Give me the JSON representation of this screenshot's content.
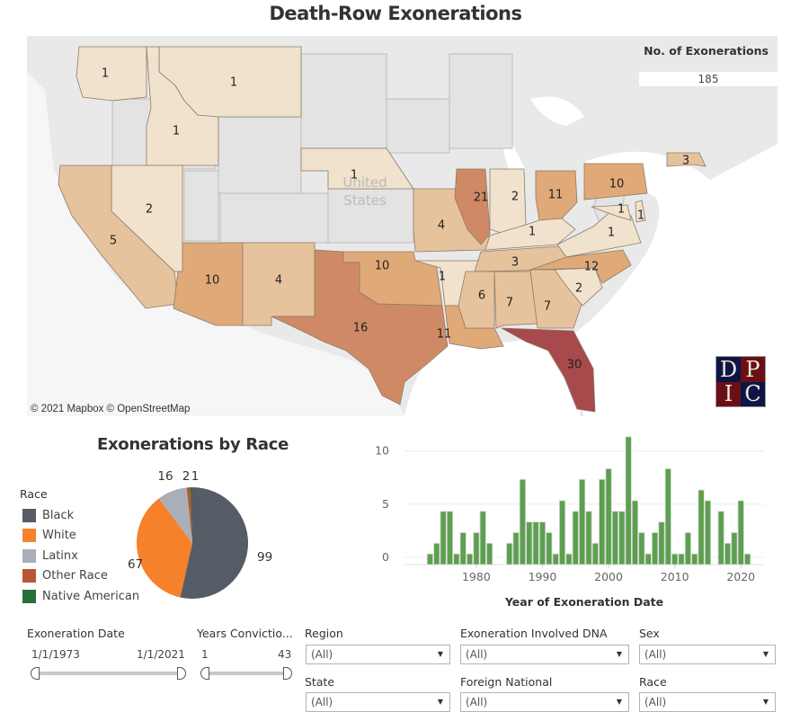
{
  "title": "Death-Row Exonerations",
  "map": {
    "kpi_label": "No. of Exonerations",
    "kpi_value": "185",
    "country_label_line1": "United",
    "country_label_line2": "States",
    "credit": "© 2021 Mapbox © OpenStreetMap",
    "logo_letters": [
      "D",
      "P",
      "I",
      "C"
    ],
    "color_scale": [
      "#f0e2cc",
      "#e7c39d",
      "#e0a978",
      "#cf8a65",
      "#a8494c"
    ],
    "states": [
      {
        "state": "WA",
        "value": 1
      },
      {
        "state": "MT",
        "value": 1
      },
      {
        "state": "ID",
        "value": 1
      },
      {
        "state": "NV",
        "value": 2
      },
      {
        "state": "CA",
        "value": 5
      },
      {
        "state": "AZ",
        "value": 10
      },
      {
        "state": "NM",
        "value": 4
      },
      {
        "state": "NE",
        "value": 1
      },
      {
        "state": "OK",
        "value": 10
      },
      {
        "state": "TX",
        "value": 16
      },
      {
        "state": "MO",
        "value": 4
      },
      {
        "state": "AR",
        "value": 1
      },
      {
        "state": "LA",
        "value": 11
      },
      {
        "state": "IL",
        "value": 21
      },
      {
        "state": "IN",
        "value": 2
      },
      {
        "state": "OH",
        "value": 11
      },
      {
        "state": "KY",
        "value": 1
      },
      {
        "state": "TN",
        "value": 3
      },
      {
        "state": "MS",
        "value": 6
      },
      {
        "state": "AL",
        "value": 7
      },
      {
        "state": "GA",
        "value": 7
      },
      {
        "state": "FL",
        "value": 30
      },
      {
        "state": "SC",
        "value": 2
      },
      {
        "state": "NC",
        "value": 12
      },
      {
        "state": "VA",
        "value": 1
      },
      {
        "state": "MD",
        "value": 1
      },
      {
        "state": "DE",
        "value": 1
      },
      {
        "state": "PA",
        "value": 10
      },
      {
        "state": "MA",
        "value": 3
      }
    ]
  },
  "chart_data": [
    {
      "type": "pie",
      "title": "Exonerations by Race",
      "legend_title": "Race",
      "legend_position": "left",
      "categories": [
        "Black",
        "White",
        "Latinx",
        "Other Race",
        "Native American"
      ],
      "values": [
        99,
        67,
        16,
        2,
        1
      ],
      "colors": [
        "#565c66",
        "#f7802b",
        "#a8afb8",
        "#b85535",
        "#2a6e3c"
      ],
      "data_labels": [
        "99",
        "67",
        "16",
        "2",
        "1"
      ]
    },
    {
      "type": "bar",
      "title": "",
      "xlabel": "Year of Exoneration Date",
      "ylabel": "",
      "ylim": [
        0,
        12.5
      ],
      "yticks": [
        0,
        5,
        10
      ],
      "xticks": [
        1980,
        1990,
        2000,
        2010,
        2020
      ],
      "grid": true,
      "color": "#5ca04f",
      "x": [
        1973,
        1974,
        1975,
        1976,
        1977,
        1978,
        1979,
        1980,
        1981,
        1982,
        1983,
        1984,
        1985,
        1986,
        1987,
        1988,
        1989,
        1990,
        1991,
        1992,
        1993,
        1994,
        1995,
        1996,
        1997,
        1998,
        1999,
        2000,
        2001,
        2002,
        2003,
        2004,
        2005,
        2006,
        2007,
        2008,
        2009,
        2010,
        2011,
        2012,
        2013,
        2014,
        2015,
        2016,
        2017,
        2018,
        2019,
        2020,
        2021
      ],
      "values": [
        1,
        2,
        5,
        5,
        1,
        3,
        1,
        3,
        5,
        2,
        0,
        0,
        2,
        3,
        8,
        4,
        4,
        4,
        3,
        1,
        6,
        1,
        5,
        8,
        5,
        2,
        8,
        9,
        5,
        5,
        12,
        6,
        3,
        1,
        3,
        4,
        9,
        1,
        1,
        3,
        1,
        7,
        6,
        0,
        5,
        2,
        3,
        6,
        1
      ]
    }
  ],
  "filters": {
    "exoneration_date": {
      "label": "Exoneration Date",
      "min": "1/1/1973",
      "max": "1/1/2021"
    },
    "years_conviction": {
      "label": "Years Convictio...",
      "min": "1",
      "max": "43"
    },
    "region": {
      "label": "Region",
      "value": "(All)"
    },
    "state": {
      "label": "State",
      "value": "(All)"
    },
    "dna": {
      "label": "Exoneration Involved DNA",
      "value": "(All)"
    },
    "foreign_national": {
      "label": "Foreign National",
      "value": "(All)"
    },
    "sex": {
      "label": "Sex",
      "value": "(All)"
    },
    "race": {
      "label": "Race",
      "value": "(All)"
    },
    "dropdown_icon": "▼"
  }
}
